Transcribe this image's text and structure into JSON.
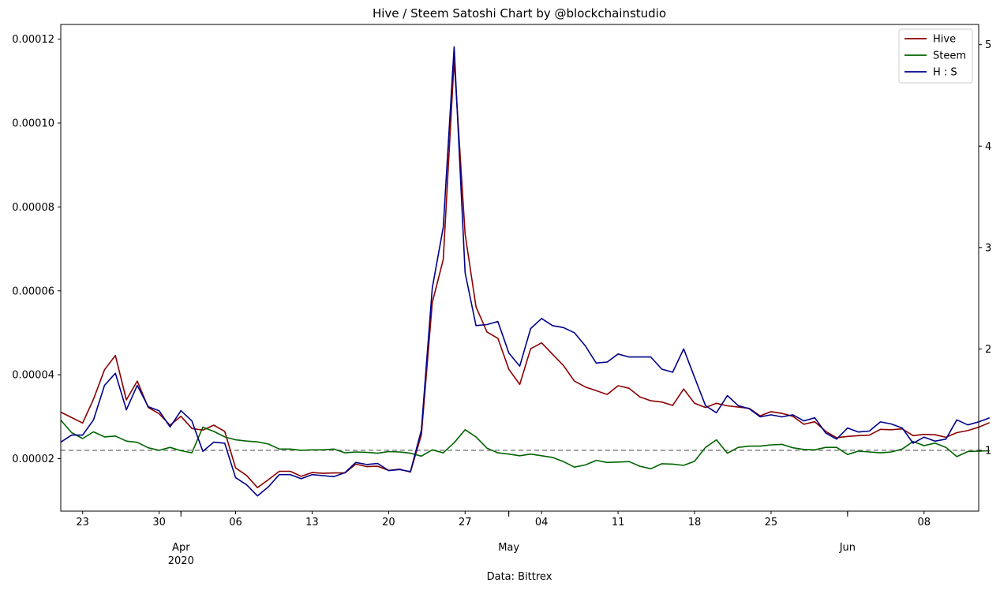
{
  "chart_data": {
    "type": "line",
    "title": "Hive / Steem Satoshi Chart by @blockchainstudio",
    "xlabel": "Data: Bittrex",
    "x_start": "2020-03-21",
    "x_end": "2020-06-13",
    "x_minor_ticks": [
      "23",
      "30",
      "06",
      "13",
      "20",
      "27",
      "04",
      "11",
      "18",
      "25",
      "08"
    ],
    "x_major_ticks": [
      "Apr\n2020",
      "May",
      "Jun"
    ],
    "y_left_ticks": [
      "0.00002",
      "0.00004",
      "0.00006",
      "0.00008",
      "0.00010",
      "0.00012"
    ],
    "y_right_ticks": [
      "1",
      "2",
      "3",
      "4",
      "5"
    ],
    "ylim_left": [
      7.5e-06,
      0.0001235
    ],
    "ylim_right": [
      0.4,
      5.2
    ],
    "reference_line": {
      "axis": "right",
      "value": 1.0,
      "style": "dashed",
      "color": "#808080"
    },
    "legend_position": "top-right",
    "series": [
      {
        "name": "Hive",
        "axis": "left",
        "color": "#8b0000",
        "values": [
          3.11e-05,
          2.98e-05,
          2.85e-05,
          3.42e-05,
          4.12e-05,
          4.46e-05,
          3.4e-05,
          3.85e-05,
          3.22e-05,
          3.07e-05,
          2.8e-05,
          3.01e-05,
          2.72e-05,
          2.68e-05,
          2.8e-05,
          2.65e-05,
          1.78e-05,
          1.6e-05,
          1.31e-05,
          1.5e-05,
          1.7e-05,
          1.7e-05,
          1.58e-05,
          1.67e-05,
          1.65e-05,
          1.66e-05,
          1.66e-05,
          1.87e-05,
          1.81e-05,
          1.82e-05,
          1.72e-05,
          1.75e-05,
          1.68e-05,
          2.57e-05,
          5.72e-05,
          6.75e-05,
          0.000115,
          7.35e-05,
          5.62e-05,
          5.02e-05,
          4.87e-05,
          4.13e-05,
          3.77e-05,
          4.62e-05,
          4.76e-05,
          4.49e-05,
          4.22e-05,
          3.85e-05,
          3.71e-05,
          3.62e-05,
          3.53e-05,
          3.74e-05,
          3.68e-05,
          3.47e-05,
          3.38e-05,
          3.35e-05,
          3.27e-05,
          3.66e-05,
          3.32e-05,
          3.22e-05,
          3.32e-05,
          3.26e-05,
          3.23e-05,
          3.2e-05,
          3.02e-05,
          3.12e-05,
          3.08e-05,
          3.01e-05,
          2.82e-05,
          2.88e-05,
          2.65e-05,
          2.5e-05,
          2.53e-05,
          2.55e-05,
          2.56e-05,
          2.7e-05,
          2.69e-05,
          2.71e-05,
          2.55e-05,
          2.58e-05,
          2.57e-05,
          2.51e-05,
          2.62e-05,
          2.67e-05,
          2.75e-05,
          2.86e-05
        ]
      },
      {
        "name": "Steem",
        "axis": "left",
        "color": "#006400",
        "values": [
          2.92e-05,
          2.62e-05,
          2.48e-05,
          2.64e-05,
          2.52e-05,
          2.54e-05,
          2.42e-05,
          2.39e-05,
          2.26e-05,
          2.2e-05,
          2.27e-05,
          2.19e-05,
          2.14e-05,
          2.75e-05,
          2.65e-05,
          2.52e-05,
          2.45e-05,
          2.42e-05,
          2.4e-05,
          2.35e-05,
          2.23e-05,
          2.23e-05,
          2.2e-05,
          2.21e-05,
          2.21e-05,
          2.23e-05,
          2.14e-05,
          2.16e-05,
          2.15e-05,
          2.13e-05,
          2.17e-05,
          2.16e-05,
          2.13e-05,
          2.06e-05,
          2.21e-05,
          2.14e-05,
          2.38e-05,
          2.69e-05,
          2.52e-05,
          2.25e-05,
          2.14e-05,
          2.11e-05,
          2.07e-05,
          2.11e-05,
          2.07e-05,
          2.03e-05,
          1.93e-05,
          1.8e-05,
          1.85e-05,
          1.96e-05,
          1.91e-05,
          1.92e-05,
          1.93e-05,
          1.82e-05,
          1.76e-05,
          1.88e-05,
          1.87e-05,
          1.84e-05,
          1.94e-05,
          2.27e-05,
          2.45e-05,
          2.13e-05,
          2.27e-05,
          2.3e-05,
          2.3e-05,
          2.33e-05,
          2.34e-05,
          2.26e-05,
          2.22e-05,
          2.21e-05,
          2.27e-05,
          2.27e-05,
          2.1e-05,
          2.18e-05,
          2.16e-05,
          2.14e-05,
          2.16e-05,
          2.23e-05,
          2.41e-05,
          2.31e-05,
          2.37e-05,
          2.27e-05,
          2.05e-05,
          2.17e-05,
          2.18e-05,
          2.19e-05
        ]
      },
      {
        "name": "H : S",
        "axis": "right",
        "color": "#00008b",
        "values": [
          1.08,
          1.15,
          1.15,
          1.3,
          1.64,
          1.76,
          1.4,
          1.64,
          1.43,
          1.39,
          1.23,
          1.39,
          1.29,
          0.99,
          1.08,
          1.07,
          0.73,
          0.66,
          0.55,
          0.64,
          0.76,
          0.76,
          0.72,
          0.76,
          0.75,
          0.74,
          0.78,
          0.88,
          0.86,
          0.87,
          0.8,
          0.81,
          0.79,
          1.2,
          2.6,
          3.2,
          4.98,
          2.75,
          2.23,
          2.24,
          2.27,
          1.96,
          1.83,
          2.2,
          2.3,
          2.23,
          2.21,
          2.16,
          2.03,
          1.86,
          1.87,
          1.95,
          1.92,
          1.92,
          1.92,
          1.8,
          1.77,
          2.0,
          1.72,
          1.44,
          1.37,
          1.54,
          1.44,
          1.41,
          1.33,
          1.35,
          1.33,
          1.35,
          1.29,
          1.32,
          1.17,
          1.11,
          1.22,
          1.18,
          1.19,
          1.28,
          1.26,
          1.22,
          1.07,
          1.13,
          1.09,
          1.11,
          1.3,
          1.25,
          1.28,
          1.32
        ]
      }
    ]
  }
}
